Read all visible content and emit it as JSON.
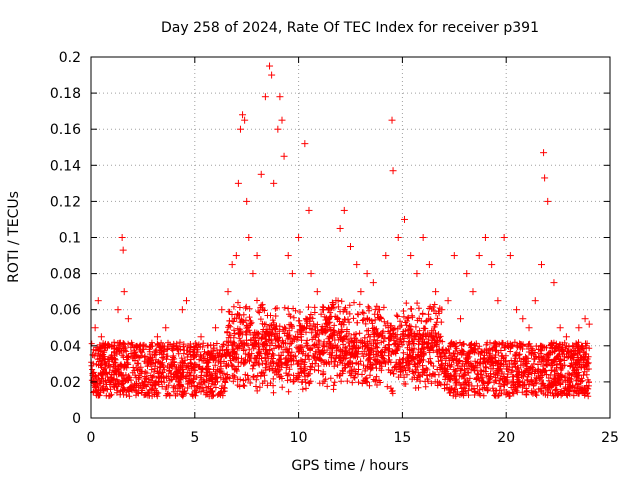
{
  "chart_data": {
    "type": "scatter",
    "title": "Day 258 of 2024, Rate Of TEC Index for receiver p391",
    "xlabel": "GPS time / hours",
    "ylabel": "ROTI / TECUs",
    "xlim": [
      0,
      25
    ],
    "ylim": [
      0,
      0.2
    ],
    "xticks": [
      0,
      5,
      10,
      15,
      20,
      25
    ],
    "xtick_labels": [
      "0",
      "5",
      "10",
      "15",
      "20",
      "25"
    ],
    "yticks": [
      0,
      0.02,
      0.04,
      0.06,
      0.08,
      0.1,
      0.12,
      0.14,
      0.16,
      0.18,
      0.2
    ],
    "ytick_labels": [
      "0",
      "0.02",
      "0.04",
      "0.06",
      "0.08",
      "0.1",
      "0.12",
      "0.14",
      "0.16",
      "0.18",
      "0.2"
    ],
    "grid": true,
    "marker": "+",
    "color": "#ff0000",
    "series": [
      {
        "name": "ROTI",
        "x": [
          0.1,
          0.2,
          0.35,
          0.5,
          0.7,
          1.0,
          1.3,
          1.5,
          1.55,
          1.6,
          1.8,
          2.1,
          2.5,
          2.9,
          3.2,
          3.6,
          4.0,
          4.4,
          4.6,
          5.0,
          5.3,
          5.7,
          6.0,
          6.3,
          6.6,
          6.8,
          7.0,
          7.1,
          7.2,
          7.3,
          7.4,
          7.5,
          7.6,
          7.8,
          8.0,
          8.2,
          8.4,
          8.6,
          8.7,
          8.8,
          9.0,
          9.1,
          9.2,
          9.3,
          9.5,
          9.7,
          10.0,
          10.3,
          10.5,
          10.6,
          10.9,
          11.2,
          11.5,
          11.8,
          12.0,
          12.2,
          12.5,
          12.8,
          13.0,
          13.3,
          13.6,
          13.9,
          14.2,
          14.5,
          14.55,
          14.8,
          15.1,
          15.4,
          15.7,
          16.0,
          16.3,
          16.6,
          16.9,
          17.2,
          17.5,
          17.8,
          18.1,
          18.4,
          18.7,
          19.0,
          19.3,
          19.6,
          19.9,
          20.2,
          20.5,
          20.8,
          21.1,
          21.4,
          21.7,
          21.8,
          21.85,
          22.0,
          22.3,
          22.6,
          22.9,
          23.2,
          23.5,
          23.8,
          24.0
        ],
        "y": [
          0.035,
          0.05,
          0.065,
          0.045,
          0.03,
          0.04,
          0.06,
          0.1,
          0.093,
          0.07,
          0.055,
          0.035,
          0.04,
          0.03,
          0.045,
          0.05,
          0.04,
          0.06,
          0.065,
          0.035,
          0.045,
          0.035,
          0.05,
          0.06,
          0.07,
          0.085,
          0.09,
          0.13,
          0.16,
          0.168,
          0.165,
          0.12,
          0.1,
          0.08,
          0.09,
          0.135,
          0.178,
          0.195,
          0.19,
          0.13,
          0.16,
          0.178,
          0.165,
          0.145,
          0.09,
          0.08,
          0.1,
          0.152,
          0.115,
          0.08,
          0.07,
          0.06,
          0.05,
          0.065,
          0.105,
          0.115,
          0.095,
          0.085,
          0.07,
          0.08,
          0.075,
          0.06,
          0.09,
          0.165,
          0.137,
          0.1,
          0.11,
          0.09,
          0.08,
          0.1,
          0.085,
          0.07,
          0.06,
          0.065,
          0.09,
          0.055,
          0.08,
          0.07,
          0.09,
          0.1,
          0.085,
          0.065,
          0.1,
          0.09,
          0.06,
          0.055,
          0.05,
          0.065,
          0.085,
          0.147,
          0.133,
          0.12,
          0.075,
          0.05,
          0.045,
          0.04,
          0.05,
          0.055,
          0.052
        ]
      }
    ]
  }
}
